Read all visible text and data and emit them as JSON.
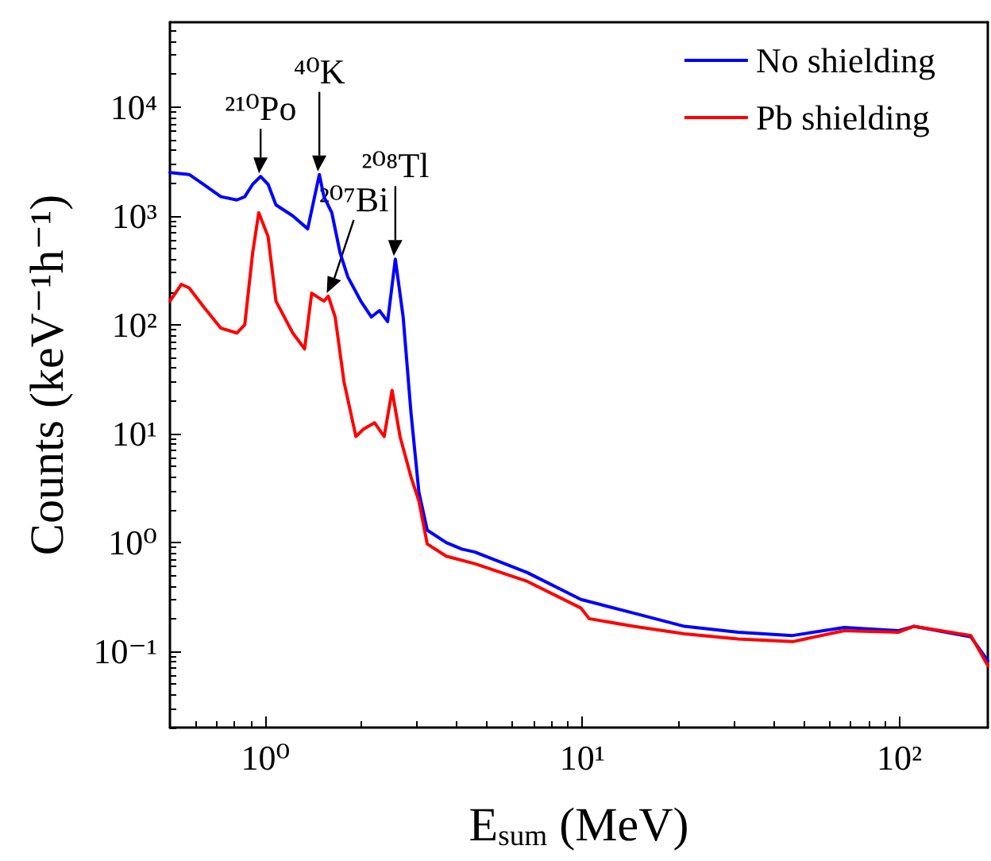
{
  "chart_data": {
    "type": "line",
    "xlabel": "E$_{sum}$ (MeV)",
    "ylabel": "Counts (keV⁻¹h⁻¹)",
    "log": "xy",
    "grid": false,
    "legend": "top right",
    "marker": "none",
    "line_style": "solid",
    "xlim": [
      0.5,
      190
    ],
    "ylim": [
      0.02,
      60000
    ],
    "xticks": [
      {
        "value": 1,
        "label": "10⁰"
      },
      {
        "value": 10,
        "label": "10¹"
      },
      {
        "value": 100,
        "label": "10²"
      }
    ],
    "yticks": [
      {
        "value": 0.1,
        "label": "10⁻¹"
      },
      {
        "value": 1,
        "label": "10⁰"
      },
      {
        "value": 10,
        "label": "10¹"
      },
      {
        "value": 100,
        "label": "10²"
      },
      {
        "value": 1000,
        "label": "10³"
      },
      {
        "value": 10000,
        "label": "10⁴"
      }
    ],
    "series": [
      {
        "name": "No shielding",
        "color": "#0000ff",
        "x": [
          0.5,
          0.575,
          0.646,
          0.724,
          0.813,
          0.861,
          0.912,
          0.966,
          1.02,
          1.08,
          1.22,
          1.36,
          1.48,
          1.53,
          1.62,
          1.72,
          1.82,
          2.0,
          2.16,
          2.29,
          2.43,
          2.57,
          2.72,
          2.88,
          3.05,
          3.24,
          3.72,
          4.17,
          4.57,
          6.7,
          9.9,
          14.5,
          21,
          31,
          46,
          67,
          99,
          111,
          168,
          190
        ],
        "values": [
          2500,
          2400,
          1900,
          1500,
          1400,
          1500,
          1950,
          2300,
          1950,
          1260,
          1000,
          760,
          2400,
          1500,
          1070,
          460,
          275,
          165,
          118,
          135,
          107,
          400,
          118,
          15.5,
          2.9,
          1.3,
          1.0,
          0.87,
          0.82,
          0.53,
          0.3,
          0.225,
          0.17,
          0.15,
          0.14,
          0.166,
          0.155,
          0.17,
          0.136,
          0.082
        ]
      },
      {
        "name": "Pb shielding",
        "color": "#ff0000",
        "x": [
          0.5,
          0.543,
          0.575,
          0.646,
          0.724,
          0.813,
          0.861,
          0.912,
          0.953,
          1.02,
          1.08,
          1.22,
          1.33,
          1.4,
          1.53,
          1.58,
          1.66,
          1.77,
          1.93,
          2.04,
          2.21,
          2.37,
          2.51,
          2.66,
          2.88,
          3.05,
          3.24,
          3.72,
          4.57,
          6.7,
          9.9,
          10.5,
          14.5,
          21,
          31,
          46,
          67,
          99,
          111,
          168,
          190
        ],
        "values": [
          165,
          235,
          218,
          140,
          93,
          84,
          100,
          460,
          1070,
          645,
          165,
          84,
          60,
          195,
          165,
          183,
          118,
          30,
          9.4,
          11,
          12.6,
          9.4,
          25,
          9.4,
          4.0,
          2.4,
          0.97,
          0.75,
          0.64,
          0.44,
          0.25,
          0.2,
          0.17,
          0.145,
          0.13,
          0.123,
          0.155,
          0.15,
          0.17,
          0.14,
          0.074
        ]
      }
    ],
    "annotations": [
      {
        "text": "²¹⁰Po",
        "x": 0.966,
        "y": 2300
      },
      {
        "text": "⁴⁰K",
        "x": 1.48,
        "y": 2400
      },
      {
        "text": "²⁰⁷Bi",
        "x": 1.58,
        "y": 183
      },
      {
        "text": "²⁰⁸Tl",
        "x": 2.57,
        "y": 400
      }
    ]
  }
}
